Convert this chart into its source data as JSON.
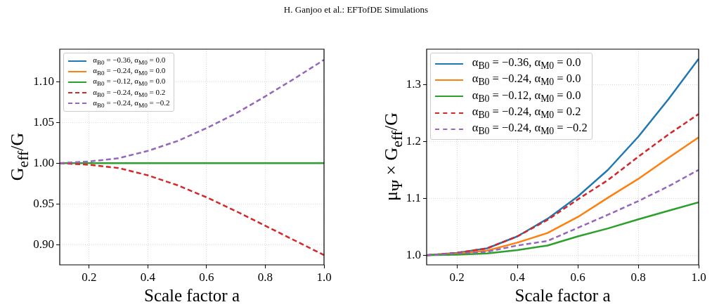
{
  "chart_data": [
    {
      "type": "line",
      "annotations": [
        "H. Ganjoo et al.: EFTofDE Simulations"
      ],
      "xlabel": "Scale factor a",
      "ylabel": "G$_{eff}$/G",
      "x": [
        0.1,
        0.2,
        0.3,
        0.4,
        0.5,
        0.6,
        0.7,
        0.8,
        0.9,
        1.0
      ],
      "series": [
        {
          "name": "α$_{B0}$ = −0.36, α$_{M0}$ = 0.0",
          "color": "#1f77b4",
          "line_style": "solid",
          "values": [
            null,
            null,
            null,
            null,
            null,
            null,
            null,
            null,
            null,
            null
          ]
        },
        {
          "name": "α$_{B0}$ = −0.24, α$_{M0}$ = 0.0",
          "color": "#ff7f0e",
          "line_style": "solid",
          "values": [
            null,
            null,
            null,
            null,
            null,
            null,
            null,
            null,
            null,
            null
          ]
        },
        {
          "name": "α$_{B0}$ = −0.12, α$_{M0}$ = 0.0",
          "color": "#2ca02c",
          "line_style": "solid",
          "values": [
            1.0,
            1.0,
            1.0,
            1.0,
            1.0,
            1.0,
            1.0,
            1.0,
            1.0,
            1.0
          ]
        },
        {
          "name": "α$_{B0}$ = −0.24, α$_{M0}$ = 0.2",
          "color": "#d62728",
          "line_style": "dashed",
          "values": [
            1.0,
            0.998,
            0.994,
            0.985,
            0.973,
            0.958,
            0.941,
            0.923,
            0.905,
            0.887
          ]
        },
        {
          "name": "α$_{B0}$ = −0.24, α$_{M0}$ = −0.2",
          "color": "#9467bd",
          "line_style": "dashed",
          "values": [
            1.0,
            1.002,
            1.006,
            1.015,
            1.027,
            1.043,
            1.061,
            1.082,
            1.104,
            1.127
          ]
        }
      ],
      "xlim": [
        0.1,
        1.0
      ],
      "xticks": [
        0.2,
        0.4,
        0.6,
        0.8,
        {
          "value": 1.0,
          "label": "1.0"
        }
      ],
      "ylim": [
        0.875,
        1.14
      ],
      "yticks": [
        {
          "value": 0.9,
          "label": "0.90"
        },
        0.95,
        {
          "value": 1.0,
          "label": "1.00"
        },
        1.05,
        {
          "value": 1.1,
          "label": "1.10"
        }
      ],
      "grid": true,
      "legend": "top left",
      "marker": "none"
    },
    {
      "type": "line",
      "xlabel": "Scale factor a",
      "ylabel": "μ$_{Ψ}$ × G$_{eff}$/G",
      "x": [
        0.1,
        0.2,
        0.3,
        0.4,
        0.5,
        0.6,
        0.7,
        0.8,
        0.9,
        1.0
      ],
      "series": [
        {
          "name": "α$_{B0}$ = −0.36, α$_{M0}$ = 0.0",
          "color": "#1f77b4",
          "line_style": "solid",
          "values": [
            1.0,
            1.004,
            1.012,
            1.033,
            1.064,
            1.103,
            1.15,
            1.208,
            1.274,
            1.345
          ]
        },
        {
          "name": "α$_{B0}$ = −0.24, α$_{M0}$ = 0.0",
          "color": "#ff7f0e",
          "line_style": "solid",
          "values": [
            1.0,
            1.003,
            1.008,
            1.022,
            1.039,
            1.067,
            1.101,
            1.134,
            1.171,
            1.207
          ]
        },
        {
          "name": "α$_{B0}$ = −0.12, α$_{M0}$ = 0.0",
          "color": "#2ca02c",
          "line_style": "solid",
          "values": [
            1.0,
            1.001,
            1.003,
            1.009,
            1.017,
            1.033,
            1.047,
            1.063,
            1.078,
            1.093
          ]
        },
        {
          "name": "α$_{B0}$ = −0.24, α$_{M0}$ = 0.2",
          "color": "#d62728",
          "line_style": "dashed",
          "values": [
            1.0,
            1.004,
            1.012,
            1.033,
            1.062,
            1.098,
            1.132,
            1.173,
            1.212,
            1.248
          ]
        },
        {
          "name": "α$_{B0}$ = −0.24, α$_{M0}$ = −0.2",
          "color": "#9467bd",
          "line_style": "dashed",
          "values": [
            1.0,
            1.003,
            1.006,
            1.017,
            1.025,
            1.048,
            1.071,
            1.095,
            1.121,
            1.15
          ]
        }
      ],
      "xlim": [
        0.1,
        1.0
      ],
      "xticks": [
        0.2,
        0.4,
        0.6,
        0.8,
        {
          "value": 1.0,
          "label": "1.0"
        }
      ],
      "ylim": [
        0.983,
        1.362
      ],
      "yticks": [
        {
          "value": 1.0,
          "label": "1.0"
        },
        1.1,
        1.2,
        1.3
      ],
      "grid": true,
      "legend": "top left",
      "marker": "none"
    }
  ]
}
